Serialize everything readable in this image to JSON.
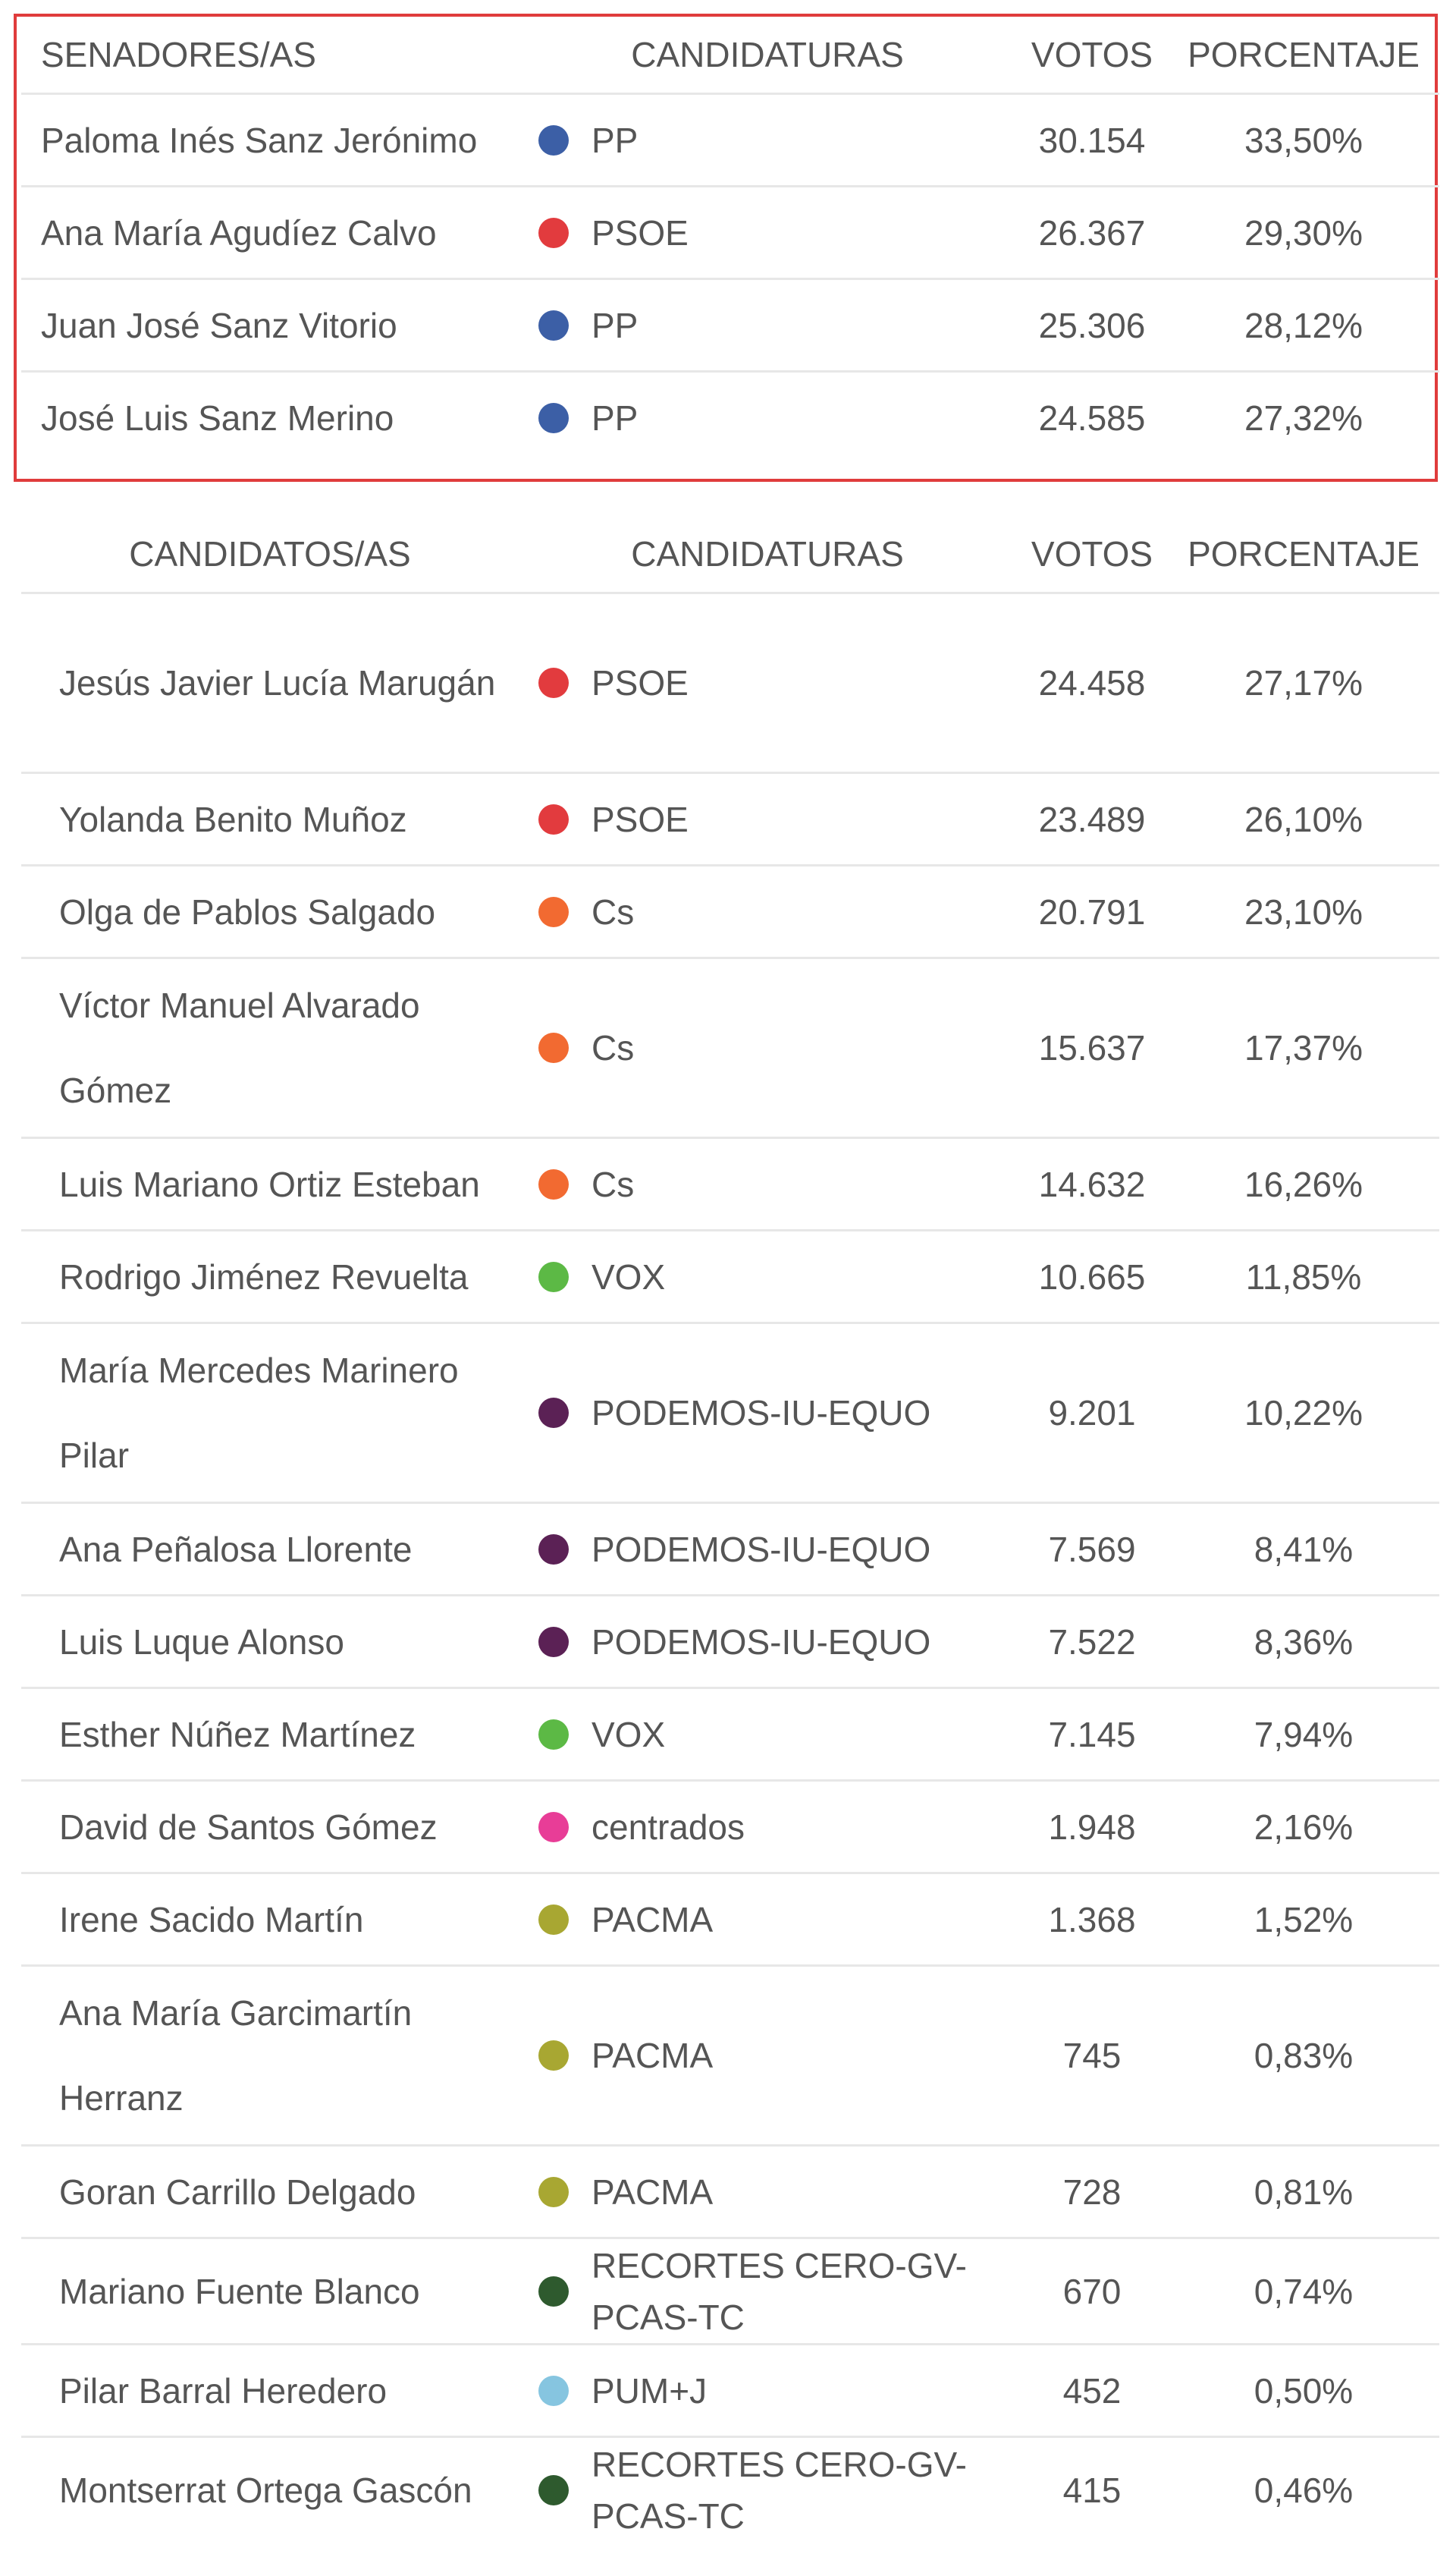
{
  "colors": {
    "PP": "#3c5fa6",
    "PSOE": "#e23b3e",
    "Cs": "#f26a31",
    "VOX": "#5cb945",
    "PODEMOS-IU-EQUO": "#5b2155",
    "centrados": "#e83d97",
    "PACMA": "#a8a732",
    "RECORTES CERO-GV-PCAS-TC": "#2e5a2e",
    "PUM+J": "#86c5e0",
    "highlight_border": "#e03c3c"
  },
  "elected": {
    "headers": {
      "name": "SENADORES/AS",
      "party": "CANDIDATURAS",
      "votes": "VOTOS",
      "pct": "PORCENTAJE"
    },
    "rows": [
      {
        "name": "Paloma Inés Sanz Jerónimo",
        "party": "PP",
        "party_key": "PP",
        "votes": "30.154",
        "pct": "33,50%"
      },
      {
        "name": "Ana María Agudíez Calvo",
        "party": "PSOE",
        "party_key": "PSOE",
        "votes": "26.367",
        "pct": "29,30%"
      },
      {
        "name": "Juan José Sanz Vitorio",
        "party": "PP",
        "party_key": "PP",
        "votes": "25.306",
        "pct": "28,12%"
      },
      {
        "name": "José Luis Sanz Merino",
        "party": "PP",
        "party_key": "PP",
        "votes": "24.585",
        "pct": "27,32%"
      }
    ]
  },
  "candidates": {
    "headers": {
      "name": "CANDIDATOS/AS",
      "party": "CANDIDATURAS",
      "votes": "VOTOS",
      "pct": "PORCENTAJE"
    },
    "rows": [
      {
        "name": "Jesús Javier Lucía Marugán",
        "party": "PSOE",
        "party_key": "PSOE",
        "votes": "24.458",
        "pct": "27,17%",
        "size": "double"
      },
      {
        "name": "Yolanda Benito Muñoz",
        "party": "PSOE",
        "party_key": "PSOE",
        "votes": "23.489",
        "pct": "26,10%",
        "size": "single"
      },
      {
        "name": "Olga de Pablos Salgado",
        "party": "Cs",
        "party_key": "Cs",
        "votes": "20.791",
        "pct": "23,10%",
        "size": "single"
      },
      {
        "name": "Víctor Manuel Alvarado Gómez",
        "party": "Cs",
        "party_key": "Cs",
        "votes": "15.637",
        "pct": "17,37%",
        "size": "double"
      },
      {
        "name": "Luis Mariano Ortiz Esteban",
        "party": "Cs",
        "party_key": "Cs",
        "votes": "14.632",
        "pct": "16,26%",
        "size": "single"
      },
      {
        "name": "Rodrigo Jiménez Revuelta",
        "party": "VOX",
        "party_key": "VOX",
        "votes": "10.665",
        "pct": "11,85%",
        "size": "single"
      },
      {
        "name": "María Mercedes Marinero Pilar",
        "party": "PODEMOS-IU-EQUO",
        "party_key": "PODEMOS-IU-EQUO",
        "votes": "9.201",
        "pct": "10,22%",
        "size": "double"
      },
      {
        "name": "Ana Peñalosa Llorente",
        "party": "PODEMOS-IU-EQUO",
        "party_key": "PODEMOS-IU-EQUO",
        "votes": "7.569",
        "pct": "8,41%",
        "size": "single"
      },
      {
        "name": "Luis Luque Alonso",
        "party": "PODEMOS-IU-EQUO",
        "party_key": "PODEMOS-IU-EQUO",
        "votes": "7.522",
        "pct": "8,36%",
        "size": "single"
      },
      {
        "name": "Esther Núñez Martínez",
        "party": "VOX",
        "party_key": "VOX",
        "votes": "7.145",
        "pct": "7,94%",
        "size": "single"
      },
      {
        "name": "David de Santos Gómez",
        "party": "centrados",
        "party_key": "centrados",
        "votes": "1.948",
        "pct": "2,16%",
        "size": "single"
      },
      {
        "name": "Irene Sacido Martín",
        "party": "PACMA",
        "party_key": "PACMA",
        "votes": "1.368",
        "pct": "1,52%",
        "size": "single"
      },
      {
        "name": "Ana María Garcimartín Herranz",
        "party": "PACMA",
        "party_key": "PACMA",
        "votes": "745",
        "pct": "0,83%",
        "size": "double"
      },
      {
        "name": "Goran Carrillo Delgado",
        "party": "PACMA",
        "party_key": "PACMA",
        "votes": "728",
        "pct": "0,81%",
        "size": "single"
      },
      {
        "name": "Mariano Fuente Blanco",
        "party": "RECORTES CERO-GV-PCAS-TC",
        "party_key": "RECORTES CERO-GV-PCAS-TC",
        "votes": "670",
        "pct": "0,74%",
        "size": "compact"
      },
      {
        "name": "Pilar Barral Heredero",
        "party": "PUM+J",
        "party_key": "PUM+J",
        "votes": "452",
        "pct": "0,50%",
        "size": "single"
      },
      {
        "name": "Montserrat Ortega Gascón",
        "party": "RECORTES CERO-GV-PCAS-TC",
        "party_key": "RECORTES CERO-GV-PCAS-TC",
        "votes": "415",
        "pct": "0,46%",
        "size": "compact"
      }
    ]
  }
}
